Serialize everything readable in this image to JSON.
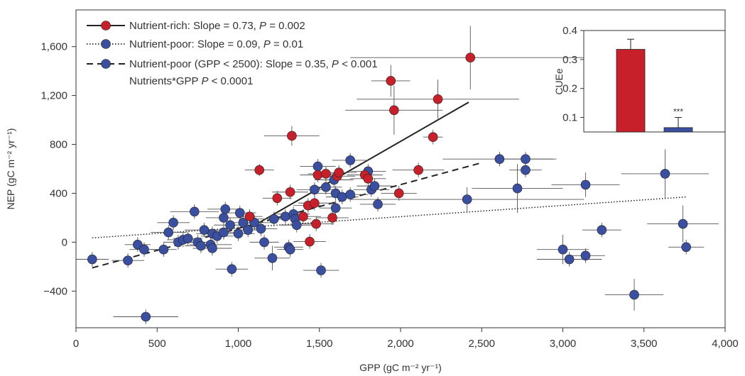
{
  "chart_data": [
    {
      "type": "scatter",
      "xlabel": "GPP (gC m⁻² yr⁻¹)",
      "ylabel": "NEP (gC m⁻² yr⁻¹)",
      "xlim": [
        0,
        4000
      ],
      "ylim": [
        -700,
        1900
      ],
      "xticks": [
        0,
        500,
        1000,
        1500,
        2000,
        2500,
        3000,
        3500,
        4000
      ],
      "xtick_labels": [
        "0",
        "500",
        "1,000",
        "1,500",
        "2,000",
        "2,500",
        "3,000",
        "3,500",
        "4,000"
      ],
      "yticks": [
        -400,
        0,
        400,
        800,
        1200,
        1600
      ],
      "ytick_labels": [
        "−400",
        "0",
        "400",
        "800",
        "1,200",
        "1,600"
      ],
      "grid": false,
      "legend_position": "top-left",
      "colors": {
        "nutrient_rich": "#c8202a",
        "nutrient_poor": "#3a4fa0",
        "errorbar": "#555555"
      },
      "legend": [
        {
          "key": "rich",
          "text": "Nutrient-rich: Slope = 0.73, ",
          "p_label": "P",
          "p_text": " = 0.002"
        },
        {
          "key": "poor",
          "text": "Nutrient-poor: Slope = 0.09, ",
          "p_label": "P",
          "p_text": " = 0.01"
        },
        {
          "key": "poor_sub",
          "text": "Nutrient-poor (GPP < 2500): Slope = 0.35, ",
          "p_label": "P",
          "p_text": " < 0.001"
        },
        {
          "key": "interaction",
          "text": "Nutrients*GPP ",
          "p_label": "P",
          "p_text": " < 0.0001"
        }
      ],
      "fit_lines": [
        {
          "series": "Nutrient-rich",
          "style": "solid",
          "x": [
            1050,
            2420
          ],
          "y": [
            100,
            1145
          ]
        },
        {
          "series": "Nutrient-poor",
          "style": "dotted",
          "x": [
            100,
            3760
          ],
          "y": [
            35,
            370
          ]
        },
        {
          "series": "Nutrient-poor (GPP < 2500)",
          "style": "dashed",
          "x": [
            100,
            2500
          ],
          "y": [
            -210,
            650
          ]
        }
      ],
      "series": [
        {
          "name": "Nutrient-rich",
          "points": [
            {
              "x": 1130,
              "y": 590,
              "xerr": 90,
              "yerr": 50
            },
            {
              "x": 1070,
              "y": 210,
              "xerr": 80,
              "yerr": 60
            },
            {
              "x": 1240,
              "y": 360,
              "xerr": 90,
              "yerr": 60
            },
            {
              "x": 1330,
              "y": 870,
              "xerr": 170,
              "yerr": 80
            },
            {
              "x": 1320,
              "y": 410,
              "xerr": 110,
              "yerr": 60
            },
            {
              "x": 1400,
              "y": 210,
              "xerr": 110,
              "yerr": 60
            },
            {
              "x": 1440,
              "y": 5,
              "xerr": 100,
              "yerr": 60
            },
            {
              "x": 1430,
              "y": 300,
              "xerr": 90,
              "yerr": 60
            },
            {
              "x": 1470,
              "y": 320,
              "xerr": 100,
              "yerr": 60
            },
            {
              "x": 1480,
              "y": 150,
              "xerr": 110,
              "yerr": 60
            },
            {
              "x": 1490,
              "y": 550,
              "xerr": 110,
              "yerr": 60
            },
            {
              "x": 1540,
              "y": 560,
              "xerr": 110,
              "yerr": 60
            },
            {
              "x": 1580,
              "y": 200,
              "xerr": 100,
              "yerr": 60
            },
            {
              "x": 1610,
              "y": 540,
              "xerr": 110,
              "yerr": 60
            },
            {
              "x": 1620,
              "y": 570,
              "xerr": 110,
              "yerr": 60
            },
            {
              "x": 1780,
              "y": 550,
              "xerr": 110,
              "yerr": 60
            },
            {
              "x": 1800,
              "y": 520,
              "xerr": 110,
              "yerr": 60
            },
            {
              "x": 1940,
              "y": 1320,
              "xerr": 120,
              "yerr": 130
            },
            {
              "x": 1960,
              "y": 1080,
              "xerr": 300,
              "yerr": 200
            },
            {
              "x": 1990,
              "y": 400,
              "xerr": 110,
              "yerr": 60
            },
            {
              "x": 2110,
              "y": 590,
              "xerr": 160,
              "yerr": 60
            },
            {
              "x": 2200,
              "y": 860,
              "xerr": 60,
              "yerr": 60
            },
            {
              "x": 2230,
              "y": 1170,
              "xerr": 500,
              "yerr": 160
            },
            {
              "x": 2430,
              "y": 1510,
              "xerr": 740,
              "yerr": 260
            }
          ]
        },
        {
          "name": "Nutrient-poor",
          "points": [
            {
              "x": 100,
              "y": -140,
              "xerr": 100,
              "yerr": 60
            },
            {
              "x": 320,
              "y": -150,
              "xerr": 100,
              "yerr": 60
            },
            {
              "x": 380,
              "y": -20,
              "xerr": 80,
              "yerr": 60
            },
            {
              "x": 420,
              "y": -60,
              "xerr": 90,
              "yerr": 60
            },
            {
              "x": 430,
              "y": -610,
              "xerr": 200,
              "yerr": 60
            },
            {
              "x": 540,
              "y": -60,
              "xerr": 80,
              "yerr": 60
            },
            {
              "x": 570,
              "y": 80,
              "xerr": 110,
              "yerr": 60
            },
            {
              "x": 600,
              "y": 160,
              "xerr": 100,
              "yerr": 60
            },
            {
              "x": 630,
              "y": 0,
              "xerr": 90,
              "yerr": 60
            },
            {
              "x": 660,
              "y": 20,
              "xerr": 100,
              "yerr": 60
            },
            {
              "x": 690,
              "y": 30,
              "xerr": 90,
              "yerr": 60
            },
            {
              "x": 730,
              "y": 250,
              "xerr": 150,
              "yerr": 60
            },
            {
              "x": 750,
              "y": 0,
              "xerr": 100,
              "yerr": 60
            },
            {
              "x": 770,
              "y": -30,
              "xerr": 100,
              "yerr": 60
            },
            {
              "x": 790,
              "y": 100,
              "xerr": 120,
              "yerr": 60
            },
            {
              "x": 830,
              "y": -20,
              "xerr": 130,
              "yerr": 60
            },
            {
              "x": 840,
              "y": 70,
              "xerr": 100,
              "yerr": 60
            },
            {
              "x": 840,
              "y": -50,
              "xerr": 120,
              "yerr": 60
            },
            {
              "x": 870,
              "y": 50,
              "xerr": 100,
              "yerr": 60
            },
            {
              "x": 910,
              "y": 200,
              "xerr": 110,
              "yerr": 60
            },
            {
              "x": 910,
              "y": 80,
              "xerr": 100,
              "yerr": 60
            },
            {
              "x": 920,
              "y": 270,
              "xerr": 110,
              "yerr": 60
            },
            {
              "x": 950,
              "y": 140,
              "xerr": 100,
              "yerr": 60
            },
            {
              "x": 960,
              "y": -220,
              "xerr": 100,
              "yerr": 60
            },
            {
              "x": 1000,
              "y": 70,
              "xerr": 100,
              "yerr": 60
            },
            {
              "x": 1010,
              "y": 240,
              "xerr": 100,
              "yerr": 60
            },
            {
              "x": 1030,
              "y": 160,
              "xerr": 100,
              "yerr": 60
            },
            {
              "x": 1060,
              "y": 100,
              "xerr": 90,
              "yerr": 60
            },
            {
              "x": 1100,
              "y": 160,
              "xerr": 100,
              "yerr": 60
            },
            {
              "x": 1140,
              "y": 110,
              "xerr": 100,
              "yerr": 60
            },
            {
              "x": 1160,
              "y": 0,
              "xerr": 90,
              "yerr": 60
            },
            {
              "x": 1210,
              "y": -130,
              "xerr": 110,
              "yerr": 100
            },
            {
              "x": 1220,
              "y": 190,
              "xerr": 100,
              "yerr": 60
            },
            {
              "x": 1290,
              "y": 210,
              "xerr": 100,
              "yerr": 60
            },
            {
              "x": 1310,
              "y": -40,
              "xerr": 90,
              "yerr": 60
            },
            {
              "x": 1320,
              "y": -60,
              "xerr": 80,
              "yerr": 60
            },
            {
              "x": 1340,
              "y": 230,
              "xerr": 100,
              "yerr": 60
            },
            {
              "x": 1350,
              "y": 190,
              "xerr": 100,
              "yerr": 60
            },
            {
              "x": 1360,
              "y": 140,
              "xerr": 100,
              "yerr": 60
            },
            {
              "x": 1470,
              "y": 430,
              "xerr": 110,
              "yerr": 60
            },
            {
              "x": 1490,
              "y": 620,
              "xerr": 110,
              "yerr": 60
            },
            {
              "x": 1510,
              "y": -230,
              "xerr": 110,
              "yerr": 60
            },
            {
              "x": 1540,
              "y": 450,
              "xerr": 100,
              "yerr": 60
            },
            {
              "x": 1590,
              "y": 510,
              "xerr": 120,
              "yerr": 60
            },
            {
              "x": 1600,
              "y": 400,
              "xerr": 110,
              "yerr": 60
            },
            {
              "x": 1600,
              "y": 280,
              "xerr": 100,
              "yerr": 60
            },
            {
              "x": 1640,
              "y": 370,
              "xerr": 100,
              "yerr": 60
            },
            {
              "x": 1690,
              "y": 390,
              "xerr": 110,
              "yerr": 60
            },
            {
              "x": 1690,
              "y": 670,
              "xerr": 110,
              "yerr": 60
            },
            {
              "x": 1800,
              "y": 580,
              "xerr": 110,
              "yerr": 60
            },
            {
              "x": 1820,
              "y": 430,
              "xerr": 110,
              "yerr": 60
            },
            {
              "x": 1840,
              "y": 460,
              "xerr": 110,
              "yerr": 60
            },
            {
              "x": 1860,
              "y": 310,
              "xerr": 110,
              "yerr": 60
            },
            {
              "x": 2410,
              "y": 350,
              "xerr": 720,
              "yerr": 100
            },
            {
              "x": 2610,
              "y": 680,
              "xerr": 350,
              "yerr": 60
            },
            {
              "x": 2720,
              "y": 440,
              "xerr": 280,
              "yerr": 200
            },
            {
              "x": 2770,
              "y": 680,
              "xerr": 170,
              "yerr": 60
            },
            {
              "x": 2770,
              "y": 590,
              "xerr": 100,
              "yerr": 60
            },
            {
              "x": 3000,
              "y": -60,
              "xerr": 160,
              "yerr": 120
            },
            {
              "x": 3040,
              "y": -140,
              "xerr": 200,
              "yerr": 60
            },
            {
              "x": 3140,
              "y": 470,
              "xerr": 210,
              "yerr": 100
            },
            {
              "x": 3140,
              "y": -110,
              "xerr": 120,
              "yerr": 60
            },
            {
              "x": 3240,
              "y": 100,
              "xerr": 120,
              "yerr": 60
            },
            {
              "x": 3440,
              "y": -430,
              "xerr": 180,
              "yerr": 130
            },
            {
              "x": 3630,
              "y": 560,
              "xerr": 270,
              "yerr": 200
            },
            {
              "x": 3740,
              "y": 150,
              "xerr": 220,
              "yerr": 150
            },
            {
              "x": 3760,
              "y": -40,
              "xerr": 110,
              "yerr": 60
            }
          ]
        }
      ]
    },
    {
      "type": "bar",
      "ylabel": "CUEe",
      "ylim": [
        0.05,
        0.4
      ],
      "yticks": [
        0.1,
        0.2,
        0.3,
        0.4
      ],
      "ytick_labels": [
        "0.1",
        "0.2",
        "0.3",
        "0.4"
      ],
      "categories": [
        "Nutrient-rich",
        "Nutrient-poor"
      ],
      "values": [
        0.335,
        0.065
      ],
      "errors": [
        0.035,
        0.035
      ],
      "colors": [
        "#c8202a",
        "#3a4fa0"
      ],
      "annotations": [
        "",
        "***"
      ]
    }
  ]
}
